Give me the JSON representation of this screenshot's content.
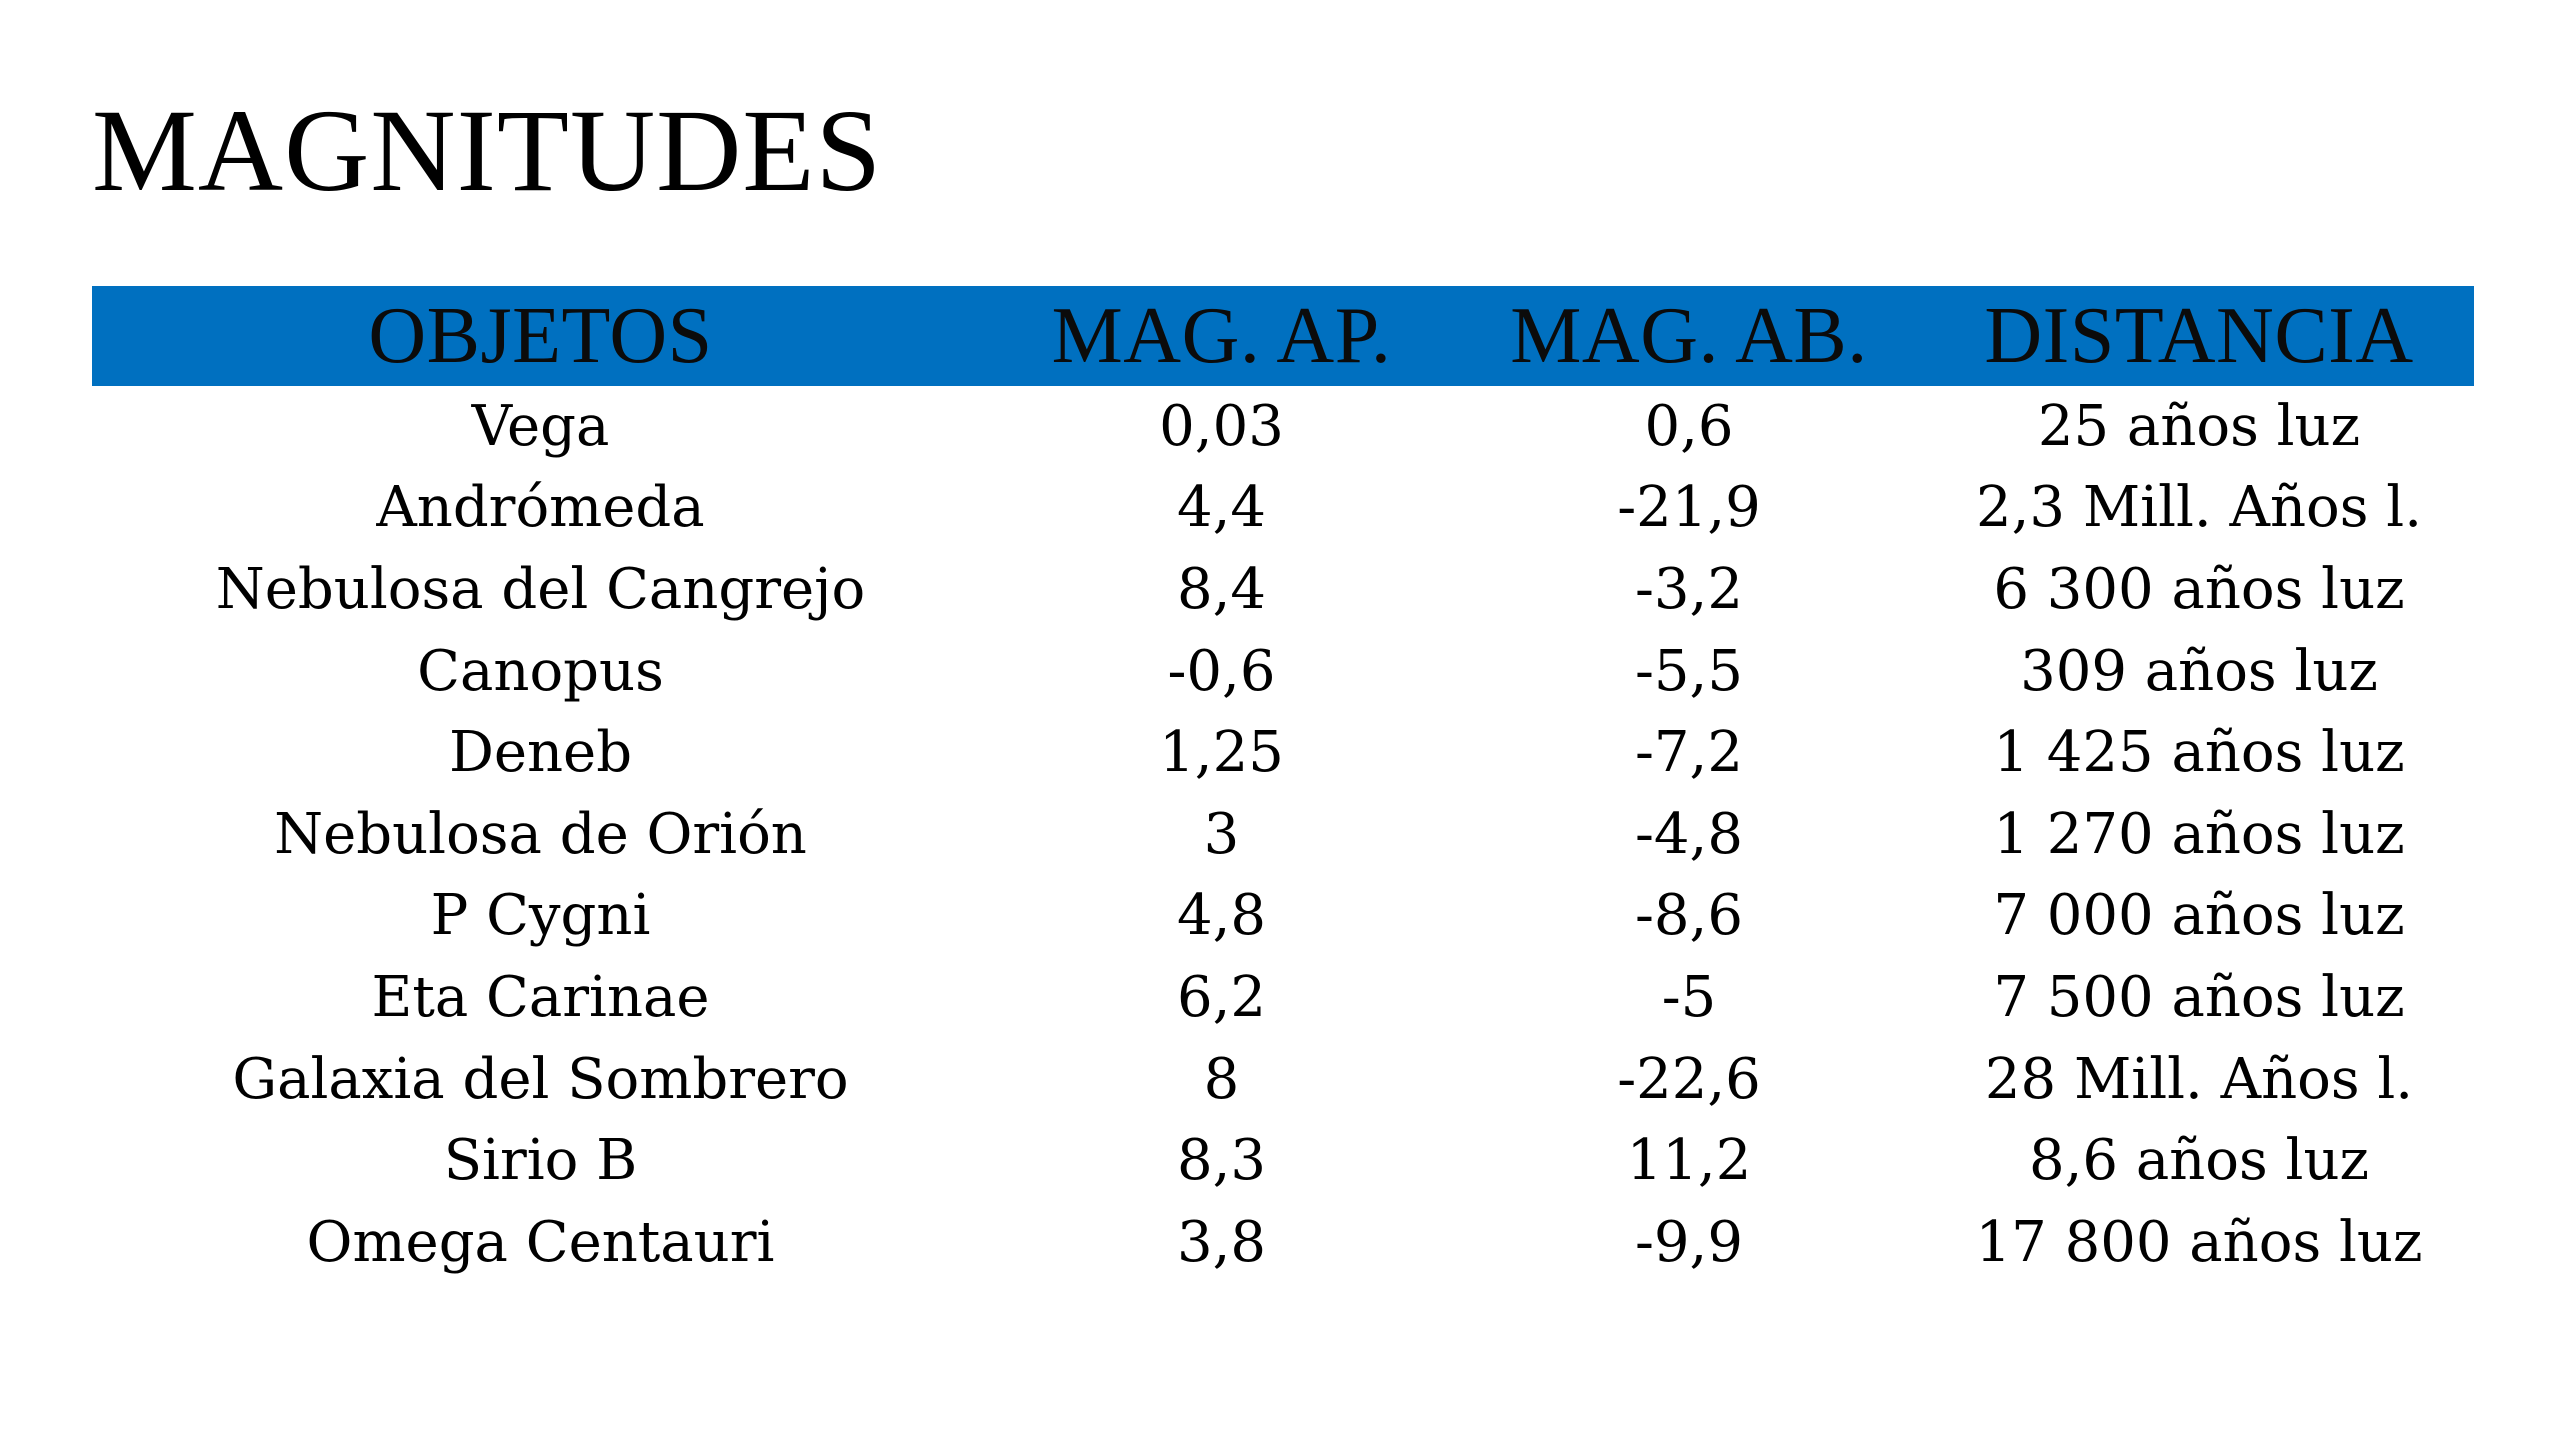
{
  "title": "MAGNITUDES",
  "table": {
    "headers": [
      "OBJETOS",
      "MAG. AP.",
      "MAG. AB.",
      "DISTANCIA"
    ],
    "header_bg": "#0070c0",
    "rows": [
      [
        "Vega",
        "0,03",
        "0,6",
        "25 años luz"
      ],
      [
        "Andrómeda",
        "4,4",
        "-21,9",
        "2,3 Mill. Años l."
      ],
      [
        "Nebulosa del Cangrejo",
        "8,4",
        "-3,2",
        "6 300 años luz"
      ],
      [
        "Canopus",
        "-0,6",
        "-5,5",
        "309 años luz"
      ],
      [
        "Deneb",
        "1,25",
        "-7,2",
        "1 425 años luz"
      ],
      [
        "Nebulosa de Orión",
        "3",
        "-4,8",
        "1 270 años luz"
      ],
      [
        "P Cygni",
        "4,8",
        "-8,6",
        "7 000 años luz"
      ],
      [
        "Eta Carinae",
        "6,2",
        "-5",
        "7 500 años luz"
      ],
      [
        "Galaxia del Sombrero",
        "8",
        "-22,6",
        "28 Mill. Años l."
      ],
      [
        "Sirio B",
        "8,3",
        "11,2",
        "8,6 años luz"
      ],
      [
        "Omega Centauri",
        "3,8",
        "-9,9",
        "17 800 años luz"
      ]
    ]
  }
}
